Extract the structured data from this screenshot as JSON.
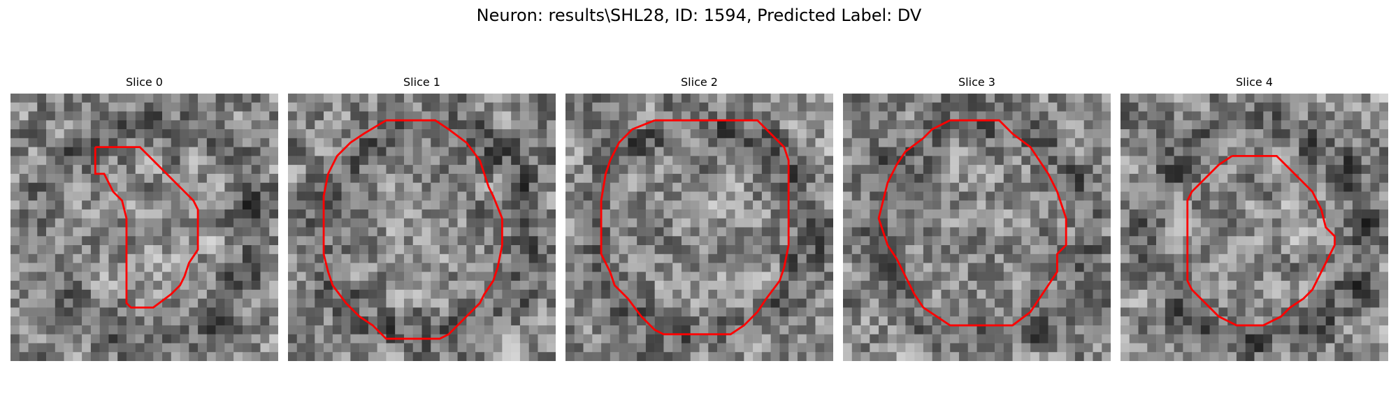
{
  "figure": {
    "title": "Neuron: results\\SHL28, ID: 1594, Predicted Label: DV"
  },
  "panels": [
    {
      "title": "Slice 0"
    },
    {
      "title": "Slice 1"
    },
    {
      "title": "Slice 2"
    },
    {
      "title": "Slice 3"
    },
    {
      "title": "Slice 4"
    }
  ],
  "colors": {
    "contour": "#ff0000",
    "colormap": "grayscale"
  }
}
